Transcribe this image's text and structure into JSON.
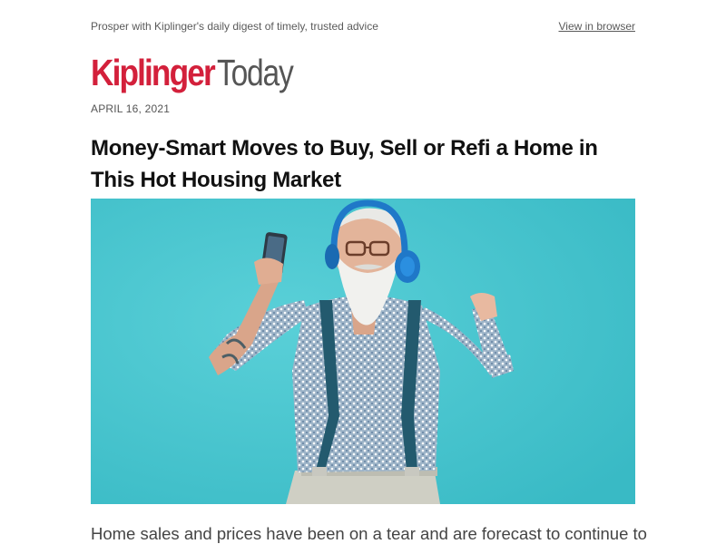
{
  "preheader": {
    "tagline": "Prosper with Kiplinger's daily digest of timely, trusted advice",
    "view_in_browser": "View in browser"
  },
  "logo": {
    "brand": "Kiplinger",
    "suffix": "Today"
  },
  "issue": {
    "date": "APRIL 16, 2021"
  },
  "article": {
    "headline": "Money-Smart Moves to Buy, Sell or Refi a Home in This Hot Housing Market",
    "intro": "Home sales and prices have been on a tear and are forecast to continue to"
  },
  "colors": {
    "brand_red": "#d3203b",
    "hero_background": "#45c4cd",
    "text_dark": "#111111",
    "text_muted": "#555555"
  },
  "icons": {
    "hero": "man-with-headphones-photo"
  }
}
